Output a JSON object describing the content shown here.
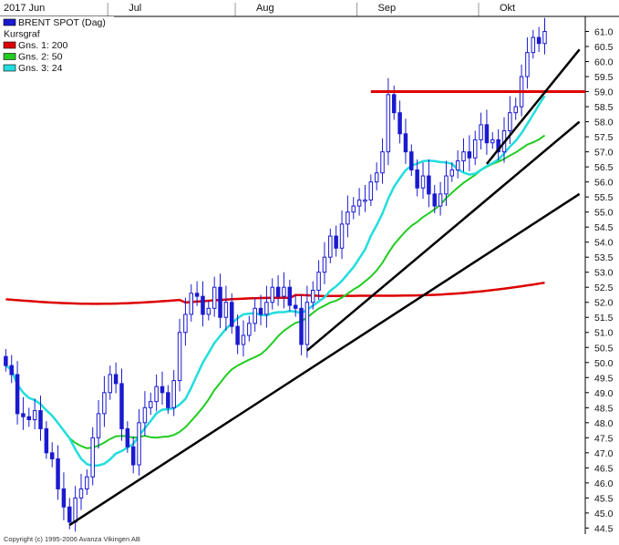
{
  "legend": [
    {
      "label": "BRENT SPOT (Dag)",
      "color": "#1a1ad0"
    },
    {
      "label": "Kursgraf",
      "color": null
    },
    {
      "label": "Gns. 1: 200",
      "color": "#dd0000"
    },
    {
      "label": "Gns. 2: 50",
      "color": "#22cc22"
    },
    {
      "label": "Gns. 3: 24",
      "color": "#22dddd"
    }
  ],
  "copyright": "Copyright (c) 1995-2006 Avanza Vikingen AB",
  "colors": {
    "candle_up": "#1a1ad0",
    "candle_down": "#1a1ad0",
    "ma200": "#dd0000",
    "ma50": "#22cc22",
    "ma24": "#22dddd",
    "trendline": "#000000",
    "resistance": "#dd0000",
    "gridline": "#dde3ec"
  },
  "chart_data": {
    "type": "candlestick",
    "x_tick_labels": [
      "2017 Jun",
      "Jul",
      "Aug",
      "Sep",
      "Okt"
    ],
    "x_tick_positions": [
      0,
      22,
      44,
      65,
      86
    ],
    "y_ticks": [
      44.5,
      45.0,
      45.5,
      46.0,
      46.5,
      47.0,
      47.5,
      48.0,
      48.5,
      49.0,
      49.5,
      50.0,
      50.5,
      51.0,
      51.5,
      52.0,
      52.5,
      53.0,
      53.5,
      54.0,
      54.5,
      55.0,
      55.5,
      56.0,
      56.5,
      57.0,
      57.5,
      58.0,
      58.5,
      59.0,
      59.5,
      60.0,
      60.5,
      61.0
    ],
    "ylim": [
      44.3,
      61.5
    ],
    "x_range": [
      -1,
      100
    ],
    "closes": [
      49.9,
      49.6,
      48.3,
      48.2,
      48.1,
      48.4,
      47.8,
      47.0,
      46.8,
      45.8,
      45.2,
      44.7,
      45.5,
      45.8,
      46.2,
      47.5,
      48.3,
      49.0,
      49.6,
      49.3,
      47.8,
      47.2,
      46.6,
      48.0,
      48.5,
      48.7,
      49.2,
      49.0,
      48.5,
      49.4,
      51.0,
      51.6,
      52.3,
      52.2,
      51.6,
      51.8,
      52.5,
      51.5,
      52.0,
      51.2,
      50.6,
      50.9,
      51.3,
      51.8,
      51.6,
      52.0,
      52.5,
      52.2,
      52.5,
      51.9,
      51.8,
      50.6,
      52.0,
      52.4,
      53.0,
      53.5,
      54.2,
      53.8,
      54.6,
      55.0,
      55.2,
      55.4,
      55.4,
      56.0,
      56.3,
      57.0,
      58.9,
      58.3,
      57.6,
      57.0,
      56.4,
      55.8,
      56.2,
      55.6,
      55.2,
      55.6,
      56.2,
      56.4,
      56.7,
      57.0,
      56.8,
      57.4,
      57.9,
      57.3,
      57.4,
      57.0,
      57.7,
      58.3,
      58.5,
      59.5,
      60.3,
      60.8,
      60.6,
      61.0
    ]
  },
  "annotations": {
    "resistance_level": 59.0,
    "resistance_from_index": 63,
    "trendlines": [
      {
        "x1": 11,
        "y1": 44.6,
        "x2": 99,
        "y2": 55.6
      },
      {
        "x1": 52,
        "y1": 50.4,
        "x2": 99,
        "y2": 58.0
      },
      {
        "x1": 83,
        "y1": 56.6,
        "x2": 99,
        "y2": 60.4
      }
    ]
  }
}
